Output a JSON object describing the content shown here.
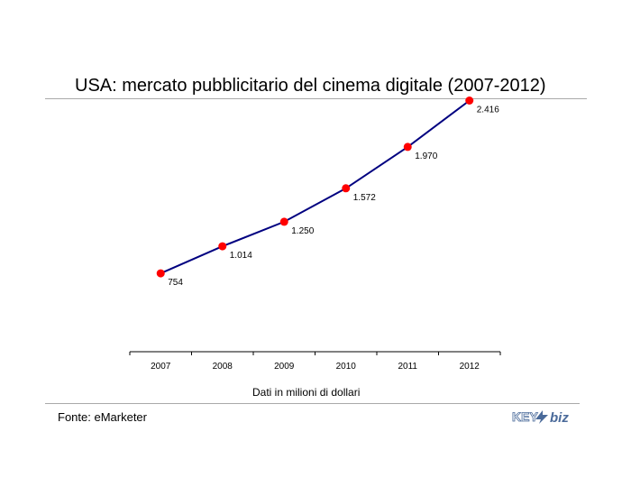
{
  "header": {
    "title": "USA: mercato pubblicitario del cinema digitale (2007-2012)"
  },
  "footer": {
    "source": "Fonte: eMarketer",
    "logo_text": "KEY4biz"
  },
  "chart_data": {
    "type": "line",
    "title": "USA: mercato pubblicitario del cinema digitale (2007-2012)",
    "xlabel": "Dati in milioni di dollari",
    "ylabel": "",
    "categories": [
      "2007",
      "2008",
      "2009",
      "2010",
      "2011",
      "2012"
    ],
    "series": [
      {
        "values": [
          754,
          1014,
          1250,
          1572,
          1970,
          2416
        ],
        "labels": [
          "754",
          "1.014",
          "1.250",
          "1.572",
          "1.970",
          "2.416"
        ]
      }
    ],
    "ylim": [
      0,
      2750
    ],
    "grid": false,
    "legend": "none",
    "colors": {
      "line": "#000080",
      "marker": "#ff0000",
      "axis": "#000000",
      "rule": "#a9a9a9"
    }
  }
}
